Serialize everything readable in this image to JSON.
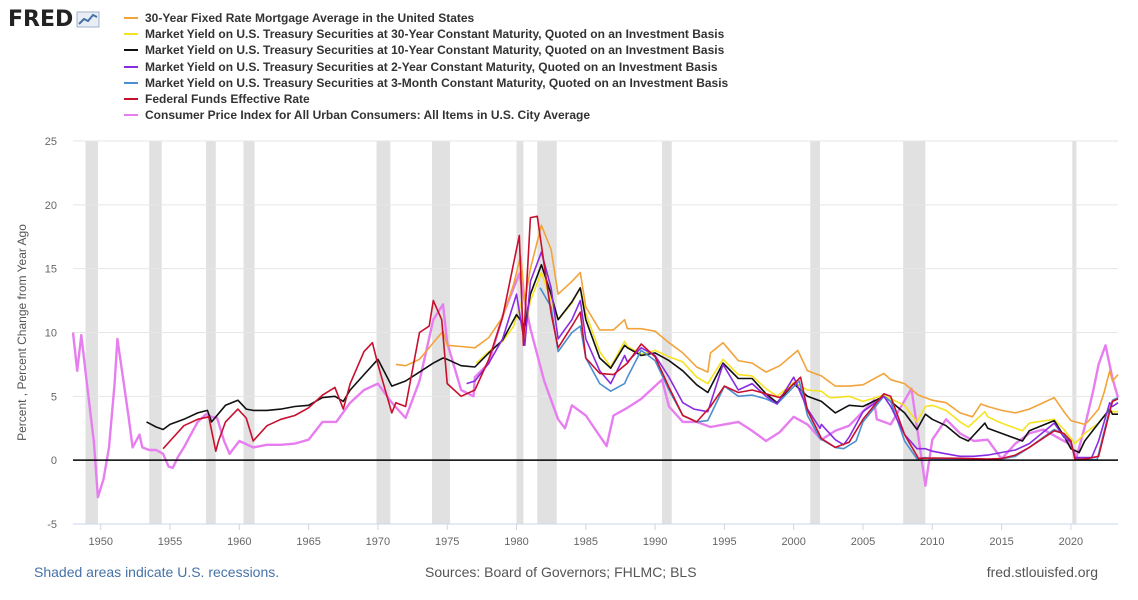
{
  "logo": {
    "text": "FRED",
    "icon": "chart-line-icon"
  },
  "colors": {
    "mortgage30": "#f2a33a",
    "t30": "#f5e320",
    "t10": "#111111",
    "t2": "#8a2be2",
    "t3m": "#4a8fd0",
    "fedfunds": "#c8102e",
    "cpi": "#e77ef0",
    "recession": "#e1e1e1",
    "zero_line": "#000000",
    "grid": "#e6e6e6"
  },
  "footer": {
    "recession_note": "Shaded areas indicate U.S. recessions.",
    "sources": "Sources: Board of Governors; FHLMC; BLS",
    "site": "fred.stlouisfed.org"
  },
  "chart_data": {
    "type": "line",
    "title": "",
    "xlabel": "",
    "ylabel": "Percent , Percent Change from Year Ago",
    "xlim": [
      1948.0,
      2023.4
    ],
    "ylim": [
      -5,
      25
    ],
    "yticks": [
      -5,
      0,
      5,
      10,
      15,
      20,
      25
    ],
    "xticks": [
      1950,
      1955,
      1960,
      1965,
      1970,
      1975,
      1980,
      1985,
      1990,
      1995,
      2000,
      2005,
      2010,
      2015,
      2020
    ],
    "grid": "horizontal",
    "legend": "top",
    "recessions": [
      [
        1948.9,
        1949.8
      ],
      [
        1953.5,
        1954.4
      ],
      [
        1957.6,
        1958.3
      ],
      [
        1960.3,
        1961.1
      ],
      [
        1969.9,
        1970.9
      ],
      [
        1973.9,
        1975.2
      ],
      [
        1980.0,
        1980.5
      ],
      [
        1981.5,
        1982.9
      ],
      [
        1990.5,
        1991.2
      ],
      [
        2001.2,
        2001.9
      ],
      [
        2007.9,
        2009.5
      ],
      [
        2020.1,
        2020.4
      ]
    ],
    "series": [
      {
        "key": "mortgage30",
        "name": "30-Year Fixed Rate Mortgage Average in the United States",
        "x": [
          1971.3,
          1972,
          1973,
          1974,
          1974.7,
          1975,
          1976,
          1977,
          1978,
          1979,
          1979.8,
          1980.3,
          1980.6,
          1981,
          1981.8,
          1982.5,
          1983,
          1984,
          1984.6,
          1985,
          1986,
          1987,
          1987.8,
          1988,
          1989,
          1990,
          1991,
          1992,
          1993,
          1993.8,
          1994,
          1994.9,
          1996,
          1997,
          1998,
          1999,
          2000.3,
          2001,
          2002,
          2003,
          2004,
          2005,
          2006.5,
          2007,
          2008,
          2009,
          2010,
          2011,
          2012,
          2012.9,
          2013.5,
          2014,
          2015,
          2016,
          2017,
          2018.8,
          2019.5,
          2020,
          2021,
          2021.3,
          2022,
          2022.4,
          2022.8,
          2023,
          2023.4
        ],
        "y": [
          7.5,
          7.4,
          7.9,
          9.2,
          10.1,
          9.0,
          8.9,
          8.8,
          9.6,
          11.2,
          13.8,
          16.0,
          12.5,
          15.0,
          18.4,
          16.5,
          13.0,
          14.0,
          14.7,
          12.0,
          10.2,
          10.2,
          11.0,
          10.3,
          10.3,
          10.1,
          9.2,
          8.4,
          7.3,
          6.9,
          8.4,
          9.2,
          7.8,
          7.6,
          6.9,
          7.4,
          8.6,
          7.0,
          6.6,
          5.8,
          5.8,
          5.9,
          6.8,
          6.3,
          6.0,
          5.1,
          4.7,
          4.5,
          3.7,
          3.4,
          4.4,
          4.2,
          3.9,
          3.7,
          4.0,
          4.9,
          3.8,
          3.1,
          2.8,
          3.1,
          4.0,
          5.3,
          7.0,
          6.2,
          6.7
        ]
      },
      {
        "key": "t30",
        "name": "Market Yield on U.S. Treasury Securities at 30-Year Constant Maturity, Quoted on an Investment Basis",
        "x": [
          1977.1,
          1978,
          1979,
          1979.8,
          1980.3,
          1980.6,
          1981,
          1981.8,
          1982.5,
          1983,
          1984,
          1984.6,
          1985,
          1986,
          1986.8,
          1987.8,
          1988,
          1989,
          1990,
          1991,
          1992,
          1993,
          1993.8,
          1994.9,
          1996,
          1997,
          1998,
          1998.8,
          2000,
          2001,
          2002,
          2002.6,
          2003,
          2004,
          2005,
          2006.5,
          2007,
          2008,
          2008.9,
          2009.5,
          2010,
          2011,
          2012,
          2012.6,
          2013.8,
          2014,
          2015,
          2016.5,
          2017,
          2018.8,
          2019.5,
          2020,
          2020.3,
          2021,
          2022,
          2022.8,
          2023,
          2023.4
        ],
        "y": [
          7.6,
          8.5,
          9.3,
          10.5,
          12.3,
          10.0,
          12.5,
          14.7,
          12.5,
          11.0,
          12.3,
          13.5,
          11.5,
          8.5,
          7.3,
          9.3,
          8.9,
          8.3,
          8.6,
          8.1,
          7.7,
          6.5,
          6.0,
          7.9,
          6.7,
          6.6,
          5.6,
          5.0,
          6.1,
          5.5,
          5.4,
          4.9,
          4.9,
          5.0,
          4.6,
          5.1,
          4.8,
          4.3,
          3.0,
          4.2,
          4.3,
          3.9,
          3.0,
          2.6,
          3.8,
          3.4,
          2.9,
          2.3,
          2.9,
          3.2,
          2.4,
          1.7,
          1.3,
          2.1,
          2.9,
          4.0,
          3.8,
          3.8
        ]
      },
      {
        "key": "t10",
        "name": "Market Yield on U.S. Treasury Securities at 10-Year Constant Maturity, Quoted on an Investment Basis",
        "x": [
          1953.3,
          1954,
          1954.5,
          1955,
          1956,
          1957,
          1957.7,
          1958,
          1959,
          1959.9,
          1960.5,
          1961,
          1962,
          1963,
          1964,
          1965,
          1966,
          1966.9,
          1967.5,
          1968,
          1969,
          1970,
          1971,
          1972,
          1973,
          1974,
          1974.7,
          1975,
          1976,
          1977,
          1978,
          1979,
          1980,
          1980.6,
          1981,
          1981.8,
          1982.5,
          1983,
          1984,
          1984.6,
          1985,
          1986,
          1986.8,
          1987.8,
          1988,
          1989,
          1990,
          1991,
          1992,
          1993,
          1993.8,
          1994.9,
          1996,
          1997,
          1998,
          1998.8,
          2000,
          2001,
          2002,
          2003,
          2004,
          2005,
          2006.5,
          2007,
          2008,
          2008.9,
          2009.5,
          2010,
          2011,
          2012,
          2012.6,
          2013.8,
          2014,
          2015,
          2016.5,
          2017,
          2018.8,
          2019.5,
          2020,
          2020.6,
          2021,
          2022,
          2022.8,
          2023,
          2023.4
        ],
        "y": [
          3.0,
          2.6,
          2.4,
          2.8,
          3.2,
          3.7,
          3.9,
          3.0,
          4.3,
          4.7,
          4.0,
          3.9,
          3.9,
          4.0,
          4.2,
          4.3,
          4.9,
          5.0,
          4.6,
          5.5,
          6.7,
          7.9,
          5.8,
          6.2,
          6.9,
          7.6,
          8.0,
          7.9,
          7.4,
          7.3,
          8.4,
          9.4,
          11.4,
          10.5,
          13.0,
          15.3,
          13.0,
          11.0,
          12.4,
          13.5,
          11.0,
          8.0,
          7.2,
          9.0,
          8.8,
          8.2,
          8.4,
          7.8,
          7.0,
          5.9,
          5.3,
          7.6,
          6.4,
          6.4,
          5.2,
          4.5,
          6.0,
          5.0,
          4.6,
          3.7,
          4.3,
          4.2,
          5.0,
          4.6,
          3.7,
          2.4,
          3.6,
          3.2,
          2.7,
          1.8,
          1.5,
          2.9,
          2.5,
          2.1,
          1.5,
          2.3,
          3.1,
          1.9,
          0.9,
          0.6,
          1.5,
          2.9,
          4.0,
          3.6,
          3.6
        ]
      },
      {
        "key": "t2",
        "name": "Market Yield on U.S. Treasury Securities at 2-Year Constant Maturity, Quoted on an Investment Basis",
        "x": [
          1976.4,
          1977,
          1978,
          1979,
          1980,
          1980.6,
          1981,
          1981.8,
          1982.5,
          1983,
          1984,
          1984.6,
          1985,
          1986,
          1986.8,
          1987.8,
          1988,
          1989,
          1990,
          1991,
          1992,
          1992.8,
          1993.8,
          1994.9,
          1996,
          1997,
          1998,
          1998.8,
          2000,
          2001,
          2001.9,
          2002,
          2003,
          2003.6,
          2004,
          2005,
          2006.5,
          2007,
          2008,
          2008.9,
          2009.5,
          2010,
          2011,
          2012,
          2013,
          2014,
          2015,
          2016,
          2017,
          2018.8,
          2019.5,
          2020,
          2020.3,
          2021,
          2021.5,
          2022,
          2022.8,
          2023,
          2023.4
        ],
        "y": [
          6.0,
          6.2,
          7.6,
          9.5,
          13.0,
          9.0,
          14.0,
          16.3,
          13.5,
          9.5,
          11.0,
          12.5,
          9.5,
          7.0,
          6.0,
          8.2,
          7.7,
          8.8,
          8.2,
          6.5,
          4.5,
          4.0,
          3.8,
          7.5,
          5.5,
          6.0,
          5.0,
          4.4,
          6.5,
          4.0,
          2.5,
          2.8,
          1.6,
          1.2,
          1.8,
          3.8,
          5.0,
          4.2,
          2.0,
          0.9,
          0.9,
          0.7,
          0.5,
          0.3,
          0.3,
          0.4,
          0.6,
          0.8,
          1.3,
          2.9,
          1.8,
          1.4,
          0.2,
          0.2,
          0.2,
          1.5,
          4.5,
          4.2,
          4.5
        ]
      },
      {
        "key": "t3m",
        "name": "Market Yield on U.S. Treasury Securities at 3-Month Constant Maturity, Quoted on an Investment Basis",
        "x": [
          1981.7,
          1982.5,
          1983,
          1984,
          1984.6,
          1985,
          1986,
          1986.8,
          1987.8,
          1988,
          1989,
          1990,
          1991,
          1992,
          1993,
          1993.8,
          1995,
          1996,
          1997,
          1998,
          1998.8,
          2000.4,
          2001,
          2001.9,
          2003,
          2003.6,
          2004.5,
          2005,
          2006.5,
          2007,
          2008,
          2008.9,
          2009.5,
          2010,
          2012,
          2014,
          2015,
          2016,
          2017,
          2018.8,
          2019.5,
          2020,
          2020.3,
          2021,
          2021.9,
          2022,
          2022.8,
          2023,
          2023.4
        ],
        "y": [
          13.5,
          12.0,
          8.5,
          10.0,
          10.5,
          8.0,
          6.0,
          5.4,
          6.0,
          6.5,
          8.6,
          7.8,
          5.5,
          3.5,
          3.0,
          3.1,
          5.8,
          5.0,
          5.1,
          4.8,
          4.4,
          6.2,
          3.5,
          1.7,
          1.0,
          0.9,
          1.5,
          3.0,
          5.0,
          4.6,
          1.5,
          0.1,
          0.2,
          0.1,
          0.1,
          0.03,
          0.1,
          0.3,
          1.0,
          2.4,
          2.0,
          1.5,
          0.1,
          0.05,
          0.05,
          0.5,
          4.0,
          4.7,
          4.9
        ]
      },
      {
        "key": "fedfunds",
        "name": "Federal Funds Effective Rate",
        "x": [
          1954.5,
          1955,
          1956,
          1957,
          1957.8,
          1958.3,
          1958.5,
          1959,
          1959.9,
          1960.5,
          1961,
          1962,
          1963,
          1964,
          1965,
          1966,
          1966.9,
          1967.5,
          1968,
          1969,
          1969.6,
          1970,
          1971,
          1971.3,
          1972,
          1973,
          1973.7,
          1974,
          1974.6,
          1975,
          1976,
          1977,
          1978,
          1979,
          1980.2,
          1980.5,
          1981,
          1981.5,
          1982.5,
          1983,
          1984,
          1984.6,
          1985,
          1986,
          1987,
          1988,
          1989,
          1990,
          1991,
          1992,
          1993,
          1994,
          1995,
          1996,
          1997,
          1998,
          1999,
          2000.5,
          2001,
          2002,
          2003,
          2004,
          2005,
          2006.5,
          2007,
          2008,
          2009,
          2010,
          2012,
          2014,
          2015,
          2016,
          2017,
          2018.8,
          2019.5,
          2020,
          2020.3,
          2021,
          2022,
          2022.8,
          2023,
          2023.4
        ],
        "y": [
          0.9,
          1.5,
          2.7,
          3.2,
          3.4,
          0.7,
          1.5,
          3.0,
          4.0,
          3.3,
          1.5,
          2.7,
          3.2,
          3.5,
          4.1,
          5.1,
          5.7,
          4.0,
          6.0,
          8.5,
          9.2,
          7.5,
          3.7,
          4.5,
          4.2,
          10.0,
          10.5,
          12.5,
          11.0,
          6.0,
          5.0,
          5.5,
          7.9,
          11.2,
          17.6,
          9.0,
          19.0,
          19.1,
          11.5,
          8.8,
          10.5,
          11.6,
          8.0,
          6.8,
          6.7,
          7.6,
          9.1,
          8.1,
          5.7,
          3.5,
          3.0,
          4.2,
          5.8,
          5.3,
          5.5,
          5.2,
          4.9,
          6.5,
          3.9,
          1.7,
          1.0,
          1.4,
          3.2,
          5.2,
          5.0,
          2.0,
          0.15,
          0.17,
          0.15,
          0.09,
          0.13,
          0.4,
          1.0,
          2.3,
          2.1,
          1.5,
          0.05,
          0.08,
          0.3,
          3.8,
          4.6,
          4.8
        ]
      },
      {
        "key": "cpi",
        "name": "Consumer Price Index for All Urban Consumers: All Items in U.S. City Average",
        "x": [
          1948.0,
          1948.3,
          1948.6,
          1949,
          1949.5,
          1949.8,
          1950.2,
          1950.6,
          1951,
          1951.2,
          1951.6,
          1952,
          1952.3,
          1952.8,
          1953,
          1953.5,
          1954,
          1954.5,
          1954.9,
          1955.2,
          1955.6,
          1956,
          1956.5,
          1957,
          1957.6,
          1958,
          1958.4,
          1958.9,
          1959.3,
          1960,
          1961,
          1962,
          1963,
          1964,
          1965,
          1966,
          1967,
          1968,
          1969,
          1970,
          1971,
          1972,
          1973,
          1974,
          1974.7,
          1975,
          1976,
          1976.9,
          1977,
          1978,
          1979,
          1980.2,
          1981,
          1982,
          1983,
          1983.5,
          1984,
          1985,
          1986.5,
          1987,
          1988,
          1989,
          1990.5,
          1991,
          1992,
          1993,
          1994,
          1995,
          1996,
          1997,
          1998,
          1999,
          2000,
          2001,
          2002,
          2003,
          2004,
          2005.8,
          2006,
          2007,
          2008.5,
          2009.5,
          2010,
          2011,
          2012,
          2013,
          2014,
          2015,
          2016,
          2017,
          2018,
          2019,
          2020,
          2020.4,
          2021,
          2021.6,
          2022,
          2022.5,
          2023,
          2023.4
        ],
        "y": [
          10.0,
          7.0,
          9.8,
          6.0,
          1.5,
          -2.9,
          -1.5,
          1.0,
          6.0,
          9.5,
          6.5,
          3.5,
          1.0,
          2.0,
          1.0,
          0.8,
          0.8,
          0.5,
          -0.5,
          -0.6,
          0.3,
          1.0,
          2.0,
          3.0,
          3.6,
          3.4,
          3.3,
          1.5,
          0.5,
          1.5,
          1.0,
          1.2,
          1.2,
          1.3,
          1.6,
          3.0,
          3.0,
          4.5,
          5.5,
          6.0,
          4.5,
          3.3,
          6.2,
          11.0,
          12.2,
          9.2,
          5.5,
          5.0,
          6.5,
          7.6,
          11.3,
          14.6,
          10.3,
          6.2,
          3.2,
          2.5,
          4.3,
          3.5,
          1.1,
          3.5,
          4.1,
          4.8,
          6.3,
          4.2,
          3.0,
          3.0,
          2.6,
          2.8,
          3.0,
          2.3,
          1.5,
          2.2,
          3.4,
          2.8,
          1.6,
          2.3,
          2.7,
          4.7,
          3.2,
          2.8,
          5.6,
          -2.0,
          1.6,
          3.2,
          2.1,
          1.5,
          1.6,
          0.1,
          1.3,
          2.1,
          2.4,
          1.8,
          1.2,
          0.2,
          2.6,
          5.4,
          7.5,
          9.0,
          6.4,
          4.9
        ]
      }
    ]
  }
}
